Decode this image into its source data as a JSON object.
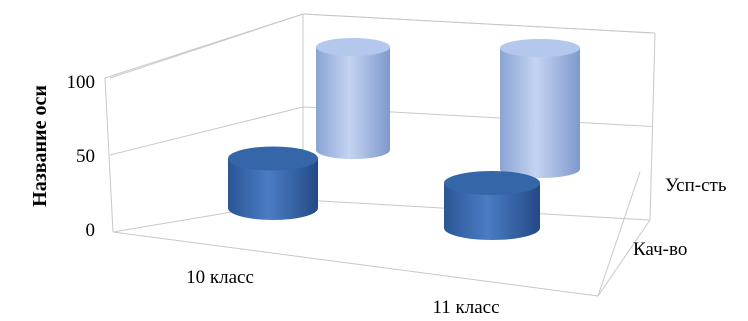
{
  "chart_data": {
    "type": "bar",
    "style": "3d-cylinder",
    "categories": [
      "10 класс",
      "11 класс"
    ],
    "series": [
      {
        "name": "Кач-во",
        "values": [
          33,
          30
        ],
        "color": "#3466a8"
      },
      {
        "name": "Усп-сть",
        "values": [
          100,
          100
        ],
        "color": "#9fb8e4"
      }
    ],
    "ylabel": "Название оси",
    "yticks": [
      "0",
      "50",
      "100"
    ],
    "ylim": [
      0,
      100
    ],
    "grid": true
  }
}
